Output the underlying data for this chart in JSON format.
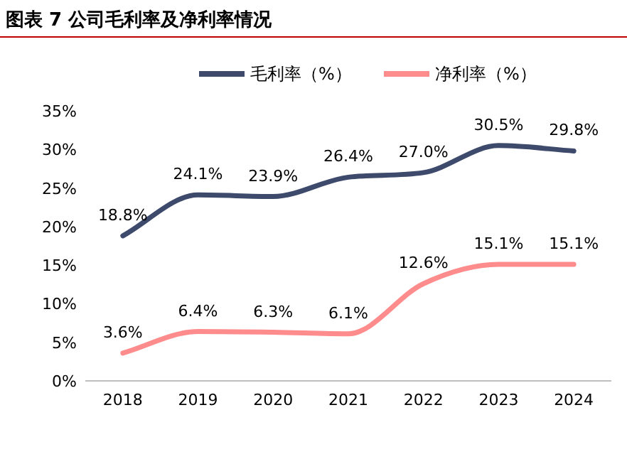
{
  "chart_data": {
    "type": "line",
    "title": "图表 7 公司毛利率及净利率情况",
    "categories": [
      "2018",
      "2019",
      "2020",
      "2021",
      "2022",
      "2023",
      "2024"
    ],
    "series": [
      {
        "name": "毛利率（%）",
        "color": "#3d4a6b",
        "values": [
          18.8,
          24.1,
          23.9,
          26.4,
          27.0,
          30.5,
          29.8
        ],
        "value_labels": [
          "18.8%",
          "24.1%",
          "23.9%",
          "26.4%",
          "27.0%",
          "30.5%",
          "29.8%"
        ]
      },
      {
        "name": "净利率（%）",
        "color": "#ff8c8c",
        "values": [
          3.6,
          6.4,
          6.3,
          6.1,
          12.6,
          15.1,
          15.1
        ],
        "value_labels": [
          "3.6%",
          "6.4%",
          "6.3%",
          "6.1%",
          "12.6%",
          "15.1%",
          "15.1%"
        ]
      }
    ],
    "ylim": [
      0,
      35
    ],
    "yticks": [
      {
        "value": 0,
        "label": "0%"
      },
      {
        "value": 5,
        "label": "5%"
      },
      {
        "value": 10,
        "label": "10%"
      },
      {
        "value": 15,
        "label": "15%"
      },
      {
        "value": 20,
        "label": "20%"
      },
      {
        "value": 25,
        "label": "25%"
      },
      {
        "value": 30,
        "label": "30%"
      },
      {
        "value": 35,
        "label": "35%"
      }
    ],
    "legend": "top"
  }
}
